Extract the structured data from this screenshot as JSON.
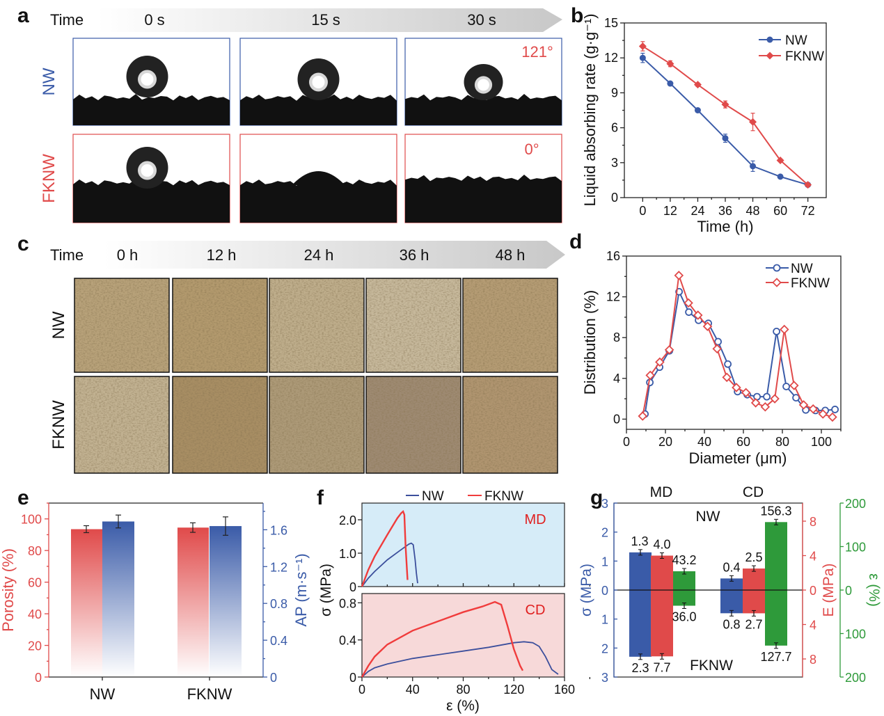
{
  "panel_labels": {
    "a": "a",
    "b": "b",
    "c": "c",
    "d": "d",
    "e": "e",
    "f": "f",
    "g": "g"
  },
  "colors": {
    "nw": "#3a5ba8",
    "fknw": "#e04a4a",
    "strain": "#2e9a3a",
    "md_bg": "#d6ecf8",
    "cd_bg": "#f7d9d9",
    "f_nw": "#3c4f9c",
    "f_fknw": "#f03c3c"
  },
  "panel_a": {
    "time_label": "Time",
    "times": [
      "0 s",
      "15 s",
      "30 s"
    ],
    "rows": [
      "NW",
      "FKNW"
    ],
    "angles": [
      "121°",
      "0°"
    ]
  },
  "panel_c": {
    "time_label": "Time",
    "times": [
      "0 h",
      "12 h",
      "24 h",
      "36 h",
      "48 h"
    ],
    "rows": [
      "NW",
      "FKNW"
    ]
  },
  "chart_data": [
    {
      "panel": "b",
      "type": "line",
      "xlabel": "Time (h)",
      "ylabel": "Liquid absorbing rate (g·g⁻¹)",
      "xlim": [
        -8,
        80
      ],
      "ylim": [
        0,
        15
      ],
      "xticks": [
        "0",
        "12",
        "24",
        "36",
        "48",
        "60",
        "72"
      ],
      "yticks": [
        "0",
        "3",
        "6",
        "9",
        "12",
        "15"
      ],
      "x": [
        0,
        12,
        24,
        36,
        48,
        60,
        72
      ],
      "legend": "top-right",
      "series": [
        {
          "name": "NW",
          "marker": "filled-circle",
          "values": [
            12.0,
            9.8,
            7.5,
            5.1,
            2.7,
            1.8,
            1.1
          ],
          "errors": [
            0.4,
            0.15,
            0.15,
            0.35,
            0.45,
            0.1,
            0.1
          ]
        },
        {
          "name": "FKNW",
          "marker": "filled-diamond",
          "values": [
            13.0,
            11.5,
            9.7,
            8.0,
            6.5,
            3.2,
            1.1
          ],
          "errors": [
            0.4,
            0.25,
            0.15,
            0.3,
            0.75,
            0.1,
            0.1
          ]
        }
      ]
    },
    {
      "panel": "d",
      "type": "line",
      "xlabel": "Diameter (μm)",
      "ylabel": "Distribution (%)",
      "xlim": [
        0,
        110
      ],
      "ylim": [
        -1,
        16
      ],
      "xticks": [
        "0",
        "20",
        "40",
        "60",
        "80",
        "100"
      ],
      "yticks": [
        "0",
        "4",
        "8",
        "12",
        "16"
      ],
      "legend": "top-right",
      "series": [
        {
          "name": "NW",
          "marker": "open-circle",
          "x": [
            9.5,
            12,
            17,
            22,
            27,
            32,
            37,
            42,
            47,
            52,
            57,
            62,
            67,
            72,
            77,
            82,
            87,
            92,
            97,
            102,
            107
          ],
          "values": [
            0.5,
            3.6,
            5.1,
            6.7,
            12.5,
            10.5,
            9.7,
            9.4,
            7.6,
            5.4,
            2.7,
            2.4,
            2.2,
            2.2,
            8.6,
            3.2,
            2.1,
            0.9,
            0.85,
            0.85,
            0.95
          ]
        },
        {
          "name": "FKNW",
          "marker": "open-diamond",
          "x": [
            8.3,
            12.2,
            17.1,
            22,
            26.9,
            31.8,
            36.7,
            41.6,
            46.5,
            51.5,
            56.4,
            61.3,
            66.3,
            71.2,
            76.1,
            81,
            86,
            90.9,
            95.8,
            100.8,
            105.7
          ],
          "values": [
            0.3,
            4.3,
            5.6,
            6.8,
            14.1,
            11.4,
            10.2,
            9.1,
            6.9,
            4.1,
            3.1,
            2.6,
            1.6,
            1.2,
            2.0,
            8.8,
            3.3,
            1.4,
            1.0,
            0.5,
            0.2
          ]
        }
      ]
    },
    {
      "panel": "e",
      "type": "bar",
      "categories": [
        "NW",
        "FKNW"
      ],
      "ylabel": "Porosity (%)",
      "ylabel_right": "AP (m·s⁻¹)",
      "ylim": [
        0,
        110
      ],
      "ylim_right": [
        0,
        1.89
      ],
      "yticks": [
        "0",
        "20",
        "40",
        "60",
        "80",
        "100"
      ],
      "yticks_right": [
        "0",
        "0.4",
        "0.8",
        "1.2",
        "1.6"
      ],
      "series": [
        {
          "name": "Porosity",
          "axis": "left",
          "values": [
            93.5,
            94.5
          ],
          "errors": [
            2.2,
            3.0
          ]
        },
        {
          "name": "AP",
          "axis": "right",
          "values": [
            1.69,
            1.64
          ],
          "errors": [
            0.07,
            0.1
          ]
        }
      ]
    },
    {
      "panel": "f",
      "type": "line",
      "xlabel": "ε (%)",
      "ylabel": "σ (MPa)",
      "xlim": [
        0,
        160
      ],
      "xticks": [
        "0",
        "40",
        "80",
        "120",
        "160"
      ],
      "legend": "top",
      "subplots": [
        {
          "annotation": "MD",
          "ylim": [
            0,
            2.5
          ],
          "yticks": [
            "0",
            "1.0",
            "2.0"
          ],
          "series": [
            {
              "name": "NW",
              "x": [
                0,
                5,
                10,
                20,
                30,
                37,
                39,
                40.5,
                42,
                43,
                44
              ],
              "values": [
                0,
                0.25,
                0.45,
                0.8,
                1.08,
                1.27,
                1.3,
                1.25,
                0.8,
                0.4,
                0.1
              ]
            },
            {
              "name": "FKNW",
              "x": [
                0,
                5,
                10,
                20,
                28,
                31,
                32.5,
                33.5,
                34.5,
                36
              ],
              "values": [
                0,
                0.5,
                0.9,
                1.55,
                2.05,
                2.2,
                2.25,
                2.15,
                1.2,
                0.2
              ]
            }
          ]
        },
        {
          "annotation": "CD",
          "ylim": [
            0,
            0.9
          ],
          "yticks": [
            "0",
            "0.4",
            "0.8"
          ],
          "series": [
            {
              "name": "NW",
              "x": [
                0,
                5,
                10,
                20,
                40,
                60,
                80,
                100,
                120,
                128,
                135,
                140,
                145,
                150,
                155
              ],
              "values": [
                0,
                0.06,
                0.1,
                0.14,
                0.2,
                0.24,
                0.28,
                0.32,
                0.37,
                0.38,
                0.37,
                0.33,
                0.22,
                0.08,
                0.03
              ]
            },
            {
              "name": "FKNW",
              "x": [
                0,
                5,
                10,
                20,
                40,
                60,
                80,
                95,
                105,
                110,
                115,
                120,
                125,
                127
              ],
              "values": [
                0,
                0.12,
                0.22,
                0.35,
                0.5,
                0.6,
                0.7,
                0.76,
                0.81,
                0.78,
                0.55,
                0.3,
                0.12,
                0.07
              ]
            }
          ]
        }
      ]
    },
    {
      "panel": "g",
      "type": "bar",
      "categories": [
        "MD",
        "CD"
      ],
      "group_labels": {
        "top": "NW",
        "bottom": "FKNW"
      },
      "ylabel_left": "σ (MPa)",
      "ylabel_middle": "E (MPa)",
      "ylabel_right": "ε (%)",
      "ylim_left": [
        -3,
        3
      ],
      "ylim_middle": [
        -10.1,
        10.1
      ],
      "ylim_right": [
        -200,
        200
      ],
      "yticks_left": [
        "3",
        "2",
        "1",
        "0",
        "1",
        "2",
        "3"
      ],
      "yticks_middle": [
        "8",
        "4",
        "0",
        "4",
        "8"
      ],
      "yticks_right": [
        "200",
        "100",
        "0",
        "100",
        "200"
      ],
      "series": [
        {
          "name": "σ",
          "axis": "left",
          "NW": [
            1.3,
            0.4
          ],
          "FKNW": [
            2.3,
            0.8
          ],
          "labels_NW": [
            "1.3",
            "0.4"
          ],
          "labels_FKNW": [
            "2.3",
            "0.8"
          ]
        },
        {
          "name": "E",
          "axis": "middle",
          "NW": [
            4.0,
            2.5
          ],
          "FKNW": [
            7.7,
            2.7
          ],
          "labels_NW": [
            "4.0",
            "2.5"
          ],
          "labels_FKNW": [
            "7.7",
            "2.7"
          ]
        },
        {
          "name": "ε",
          "axis": "right",
          "NW": [
            43.2,
            156.3
          ],
          "FKNW": [
            36.0,
            127.7
          ],
          "labels_NW": [
            "43.2",
            "156.3"
          ],
          "labels_FKNW": [
            "36.0",
            "127.7"
          ]
        }
      ]
    }
  ]
}
